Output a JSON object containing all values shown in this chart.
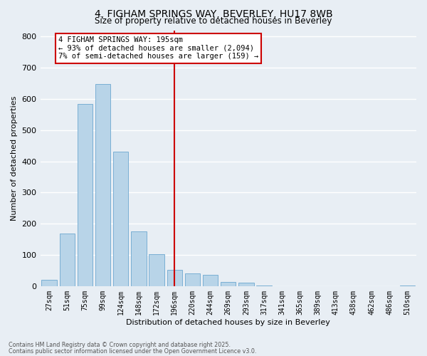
{
  "title": "4, FIGHAM SPRINGS WAY, BEVERLEY, HU17 8WB",
  "subtitle": "Size of property relative to detached houses in Beverley",
  "xlabel": "Distribution of detached houses by size in Beverley",
  "ylabel": "Number of detached properties",
  "bar_labels": [
    "27sqm",
    "51sqm",
    "75sqm",
    "99sqm",
    "124sqm",
    "148sqm",
    "172sqm",
    "196sqm",
    "220sqm",
    "244sqm",
    "269sqm",
    "293sqm",
    "317sqm",
    "341sqm",
    "365sqm",
    "389sqm",
    "413sqm",
    "438sqm",
    "462sqm",
    "486sqm",
    "510sqm"
  ],
  "bar_values": [
    20,
    168,
    583,
    648,
    432,
    175,
    103,
    52,
    40,
    35,
    13,
    10,
    1,
    0,
    0,
    0,
    0,
    0,
    0,
    0,
    2
  ],
  "bar_color": "#b8d4e8",
  "bar_edge_color": "#7aafd4",
  "vline_x_index": 7,
  "vline_color": "#cc0000",
  "ylim": [
    0,
    820
  ],
  "yticks": [
    0,
    100,
    200,
    300,
    400,
    500,
    600,
    700,
    800
  ],
  "annotation_title": "4 FIGHAM SPRINGS WAY: 195sqm",
  "annotation_line1": "← 93% of detached houses are smaller (2,094)",
  "annotation_line2": "7% of semi-detached houses are larger (159) →",
  "annotation_box_color": "#ffffff",
  "annotation_box_edge": "#cc0000",
  "footer_line1": "Contains HM Land Registry data © Crown copyright and database right 2025.",
  "footer_line2": "Contains public sector information licensed under the Open Government Licence v3.0.",
  "background_color": "#e8eef4",
  "grid_color": "#ffffff"
}
